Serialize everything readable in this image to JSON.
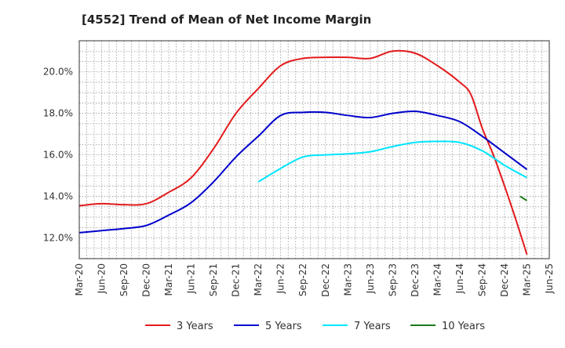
{
  "chart_data": {
    "type": "line",
    "title": "[4552]  Trend of Mean of Net Income Margin",
    "xlabel": "",
    "ylabel": "",
    "x_ticks": [
      "Mar-20",
      "Jun-20",
      "Sep-20",
      "Dec-20",
      "Mar-21",
      "Jun-21",
      "Sep-21",
      "Dec-21",
      "Mar-22",
      "Jun-22",
      "Sep-22",
      "Dec-22",
      "Mar-23",
      "Jun-23",
      "Sep-23",
      "Dec-23",
      "Mar-24",
      "Jun-24",
      "Sep-24",
      "Dec-24",
      "Mar-25",
      "Jun-25"
    ],
    "y_ticks": [
      12.0,
      14.0,
      16.0,
      18.0,
      20.0
    ],
    "y_tick_labels": [
      "12.0%",
      "14.0%",
      "16.0%",
      "18.0%",
      "20.0%"
    ],
    "ylim": [
      11.0,
      21.5
    ],
    "grid": true,
    "legend_position": "bottom",
    "series": [
      {
        "name": "3 Years",
        "color": "#e31a1c",
        "x": [
          0,
          1,
          2,
          3,
          4,
          5,
          6,
          7,
          8,
          9,
          10,
          11,
          12,
          13,
          14,
          15,
          16,
          17,
          17.5,
          18,
          18.5,
          19,
          19.5,
          20
        ],
        "y": [
          13.55,
          13.65,
          13.6,
          13.65,
          14.2,
          14.9,
          16.3,
          18.0,
          19.2,
          20.3,
          20.65,
          20.7,
          20.7,
          20.65,
          21.0,
          20.9,
          20.3,
          19.5,
          18.9,
          17.3,
          16.0,
          14.5,
          12.9,
          11.2
        ]
      },
      {
        "name": "5 Years",
        "color": "#0000cc",
        "x": [
          0,
          1,
          2,
          3,
          4,
          5,
          6,
          7,
          8,
          9,
          10,
          11,
          12,
          13,
          14,
          15,
          16,
          17,
          18,
          19,
          20
        ],
        "y": [
          12.25,
          12.35,
          12.45,
          12.6,
          13.1,
          13.7,
          14.7,
          15.9,
          16.9,
          17.9,
          18.05,
          18.05,
          17.9,
          17.8,
          18.0,
          18.1,
          17.9,
          17.6,
          16.9,
          16.1,
          15.3
        ]
      },
      {
        "name": "7 Years",
        "color": "#00e5ff",
        "x": [
          8,
          9,
          10,
          11,
          12,
          13,
          14,
          15,
          16,
          17,
          18,
          19,
          20
        ],
        "y": [
          14.7,
          15.35,
          15.9,
          16.0,
          16.05,
          16.15,
          16.4,
          16.6,
          16.65,
          16.6,
          16.2,
          15.5,
          14.9
        ]
      },
      {
        "name": "10 Years",
        "color": "#1a7a1a",
        "x": [
          19.7,
          20
        ],
        "y": [
          14.0,
          13.8
        ]
      }
    ]
  }
}
